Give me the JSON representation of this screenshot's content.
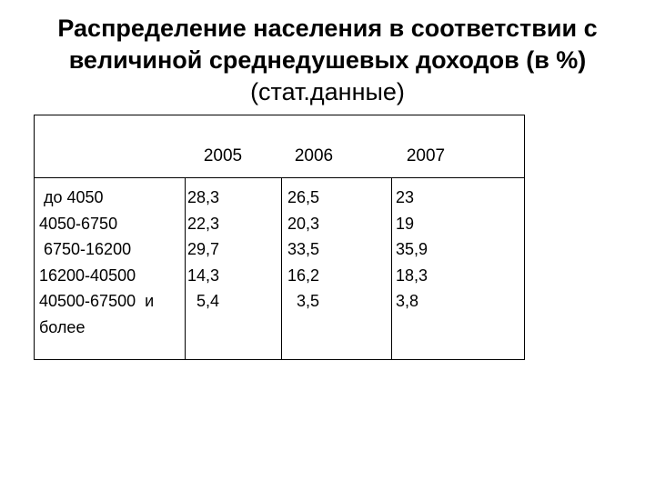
{
  "title": {
    "line1": "Распределение населения в соответствии с",
    "line2": "величиной среднедушевых доходов (в %)",
    "line3": "(стат.данные)"
  },
  "table": {
    "years": [
      "2005",
      "2006",
      "2007"
    ],
    "rows": [
      {
        "label": " до 4050",
        "v2005": "28,3",
        "v2006": "26,5",
        "v2007": "23"
      },
      {
        "label": "4050-6750",
        "v2005": "22,3",
        "v2006": "20,3",
        "v2007": "19"
      },
      {
        "label": " 6750-16200",
        "v2005": "29,7",
        "v2006": "33,5",
        "v2007": "35,9"
      },
      {
        "label": "16200-40500",
        "v2005": "14,3",
        "v2006": "16,2",
        "v2007": "18,3"
      },
      {
        "label": "40500-67500  и",
        "v2005": "  5,4",
        "v2006": "  3,5",
        "v2007": "3,8"
      }
    ],
    "label_continuation": "более"
  }
}
